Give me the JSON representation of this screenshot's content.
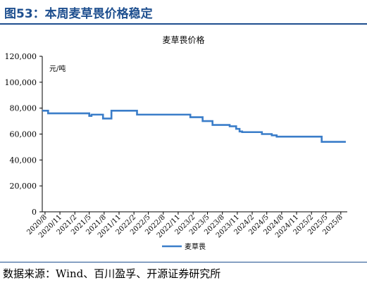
{
  "header": {
    "figure_title": "图53：本周麦草畏价格稳定"
  },
  "footer": {
    "source": "数据来源：Wind、百川盈孚、开源证券研究所"
  },
  "colors": {
    "accent": "#1e4f8f",
    "series": "#3a7dc9"
  },
  "chart_data": {
    "type": "line",
    "title": "麦草畏价格",
    "unit_label": "元/吨",
    "ylim": [
      0,
      120000
    ],
    "yticks": [
      0,
      20000,
      40000,
      60000,
      80000,
      100000,
      120000
    ],
    "ytick_labels": [
      "0",
      "20,000",
      "40,000",
      "60,000",
      "80,000",
      "100,000",
      "120,000"
    ],
    "xlim": [
      "2020-07-15",
      "2025-09-10"
    ],
    "xtick_labels": [
      "2020/8",
      "2020/11",
      "2021/2",
      "2021/5",
      "2021/8",
      "2021/11",
      "2022/2",
      "2022/5",
      "2022/8",
      "2022/11",
      "2023/2",
      "2023/5",
      "2023/8",
      "2023/11",
      "2024/2",
      "2024/5",
      "2024/8",
      "2024/11",
      "2025/2",
      "2025/5",
      "2025/8"
    ],
    "xtick_dates": [
      "2020-08-01",
      "2020-11-01",
      "2021-02-01",
      "2021-05-01",
      "2021-08-01",
      "2021-11-01",
      "2022-02-01",
      "2022-05-01",
      "2022-08-01",
      "2022-11-01",
      "2023-02-01",
      "2023-05-01",
      "2023-08-01",
      "2023-11-01",
      "2024-02-01",
      "2024-05-01",
      "2024-08-01",
      "2024-11-01",
      "2025-02-01",
      "2025-05-01",
      "2025-08-01"
    ],
    "grid": false,
    "legend_position": "bottom",
    "series": [
      {
        "name": "麦草畏",
        "x": [
          "2020-07-15",
          "2020-08-20",
          "2020-08-20",
          "2021-05-01",
          "2021-05-01",
          "2021-05-15",
          "2021-05-15",
          "2021-07-25",
          "2021-07-25",
          "2021-09-15",
          "2021-09-15",
          "2022-02-20",
          "2022-02-20",
          "2023-01-15",
          "2023-01-15",
          "2023-04-01",
          "2023-04-01",
          "2023-06-01",
          "2023-06-01",
          "2023-09-15",
          "2023-09-15",
          "2023-10-25",
          "2023-10-25",
          "2023-11-15",
          "2023-11-15",
          "2023-12-01",
          "2023-12-01",
          "2024-04-01",
          "2024-04-01",
          "2024-06-01",
          "2024-06-01",
          "2024-07-01",
          "2024-07-01",
          "2025-04-05",
          "2025-04-05",
          "2025-09-01"
        ],
        "y": [
          78000,
          78000,
          76000,
          76000,
          74000,
          74000,
          75000,
          75000,
          72000,
          72000,
          78000,
          78000,
          75000,
          75000,
          73000,
          73000,
          70000,
          70000,
          67000,
          67000,
          66000,
          66000,
          64000,
          64000,
          62000,
          62000,
          61500,
          61500,
          60000,
          60000,
          59000,
          59000,
          58000,
          58000,
          54000,
          54000
        ]
      }
    ]
  }
}
